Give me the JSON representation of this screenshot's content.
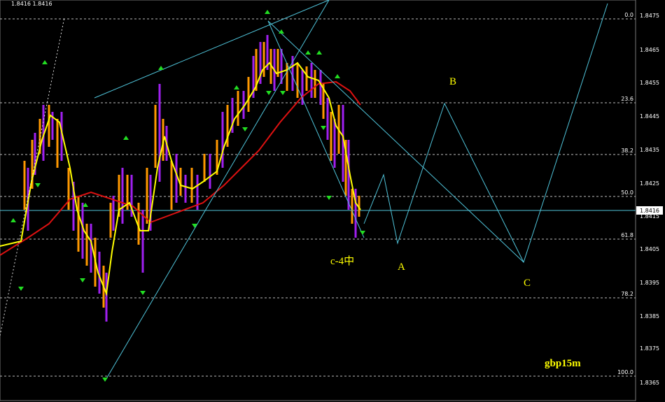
{
  "header": {
    "quote": "1.8416 1.8416"
  },
  "price_axis": {
    "labels": [
      "1.8475",
      "1.8465",
      "1.8455",
      "1.8445",
      "1.8435",
      "1.8425",
      "1.8415",
      "1.8405",
      "1.8395",
      "1.8385",
      "1.8375",
      "1.8365"
    ],
    "current_price": "1.8416"
  },
  "fib_levels": [
    "0.0",
    "23.6",
    "38.2",
    "50.0",
    "61.8",
    "78.2",
    "100.0"
  ],
  "wave_labels": {
    "a": "A",
    "b": "B",
    "c": "C",
    "note": "c-4中"
  },
  "symbol": "gbp15m"
}
